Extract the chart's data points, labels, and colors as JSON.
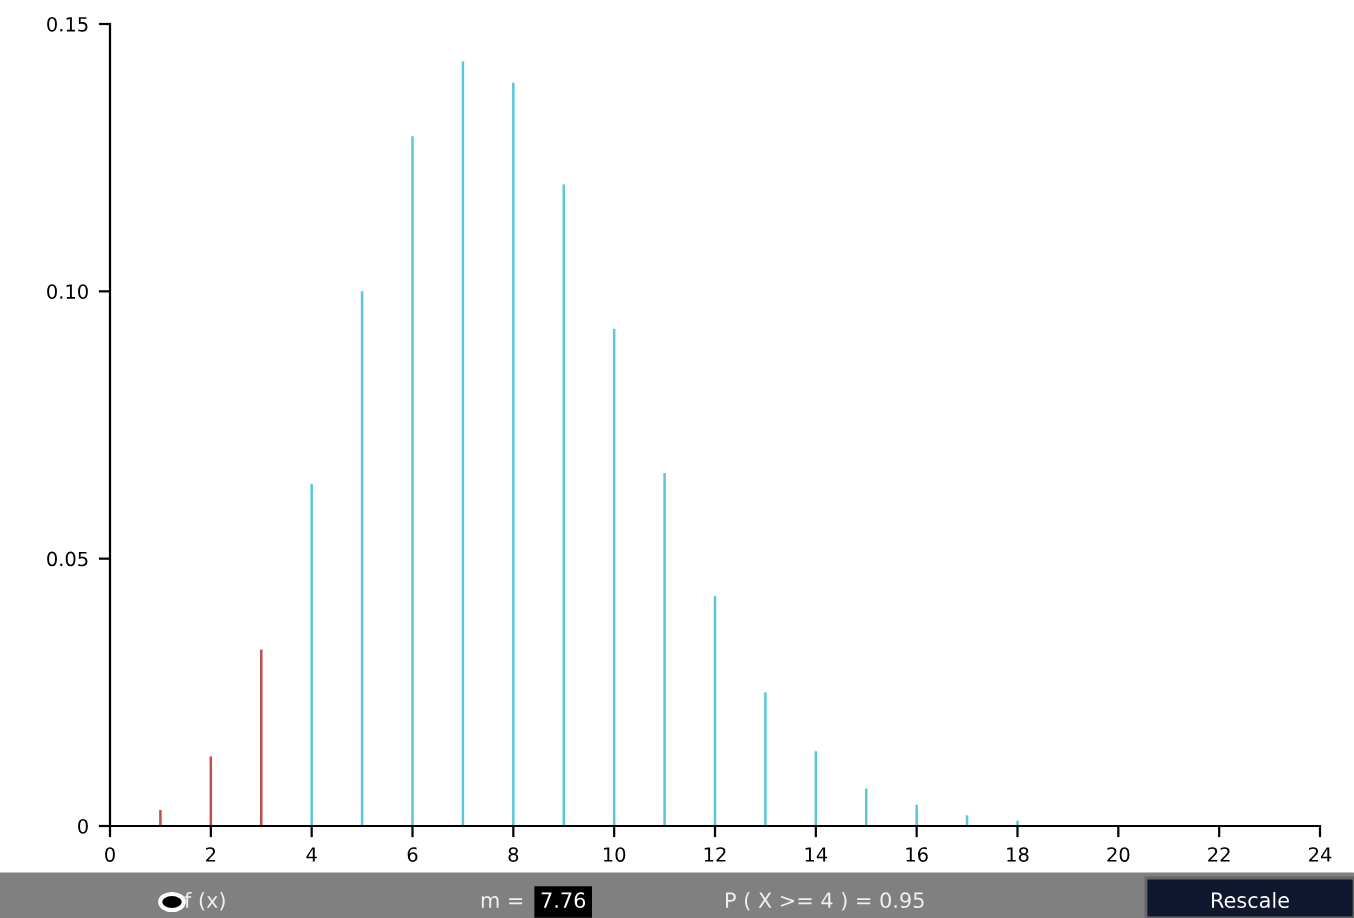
{
  "chart_data": {
    "type": "bar",
    "x": [
      1,
      2,
      3,
      4,
      5,
      6,
      7,
      8,
      9,
      10,
      11,
      12,
      13,
      14,
      15,
      16,
      17,
      18
    ],
    "values": [
      0.003,
      0.013,
      0.033,
      0.064,
      0.1,
      0.129,
      0.143,
      0.139,
      0.12,
      0.093,
      0.066,
      0.043,
      0.025,
      0.014,
      0.007,
      0.004,
      0.002,
      0.001
    ],
    "colors": [
      "#c0504d",
      "#c0504d",
      "#c0504d",
      "#5bc8da",
      "#5bc8da",
      "#5bc8da",
      "#5bc8da",
      "#5bc8da",
      "#5bc8da",
      "#5bc8da",
      "#5bc8da",
      "#5bc8da",
      "#5bc8da",
      "#5bc8da",
      "#5bc8da",
      "#5bc8da",
      "#5bc8da",
      "#5bc8da"
    ],
    "xlim": [
      0,
      24
    ],
    "xticks": [
      0,
      2,
      4,
      6,
      8,
      10,
      12,
      14,
      16,
      18,
      20,
      22,
      24
    ],
    "ylim": [
      0,
      0.15
    ],
    "yticks": [
      0,
      {
        "value": 0.05,
        "label": "0.05"
      },
      {
        "value": 0.1,
        "label": "0.10"
      },
      {
        "value": 0.15,
        "label": "0.15"
      }
    ],
    "grid": false,
    "annotations": [
      "f (x)",
      "m =",
      "7.76",
      "P ( X >= 4 ) = 0.95",
      "Rescale"
    ]
  }
}
